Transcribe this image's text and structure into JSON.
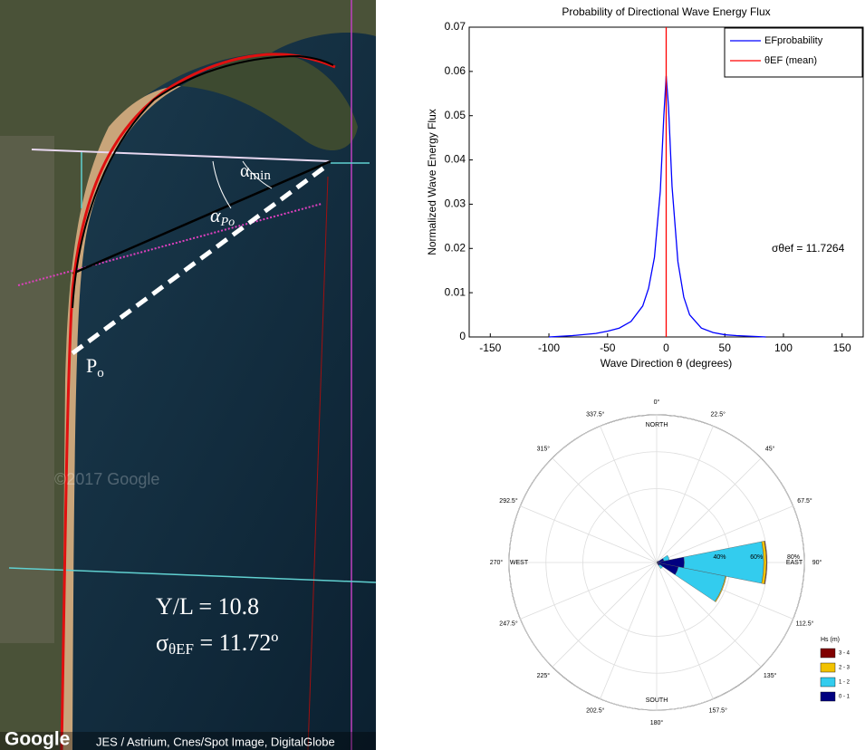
{
  "image": {
    "alpha_min": {
      "symbol": "α",
      "subscript": "min"
    },
    "alpha_po": {
      "symbol": "α",
      "subscript": "Po"
    },
    "point": {
      "symbol": "P",
      "subscript": "o"
    },
    "ratio": "Y/L = 10.8",
    "sigma": {
      "symbol": "σ",
      "subscript": "θEF",
      "text": " = 11.72º"
    },
    "watermark": "Google",
    "faint_watermark": "©2017 Google",
    "credits": "JES / Astrium, Cnes/Spot Image, DigitalGlobe"
  },
  "chart_data": [
    {
      "type": "line",
      "title": "Probability of Directional Wave Energy Flux",
      "x_label": "Wave Direction θ (degrees)",
      "y_label": "Normalized Wave Energy Flux",
      "xlim": [
        -168,
        168
      ],
      "ylim": [
        0,
        0.07
      ],
      "xticks": [
        -150,
        -100,
        -50,
        0,
        50,
        100,
        150
      ],
      "yticks": [
        0,
        0.01,
        0.02,
        0.03,
        0.04,
        0.05,
        0.06,
        0.07
      ],
      "legend": "top-right",
      "annotation": "σθef =  11.7264",
      "series": [
        {
          "name": "EFprobability",
          "color": "#0000ff",
          "x": [
            -100,
            -80,
            -60,
            -50,
            -40,
            -30,
            -20,
            -15,
            -10,
            -5,
            -2,
            0,
            2,
            5,
            10,
            15,
            20,
            30,
            40,
            50,
            60,
            85
          ],
          "values": [
            0,
            0.0003,
            0.0008,
            0.0013,
            0.002,
            0.0035,
            0.007,
            0.011,
            0.018,
            0.033,
            0.05,
            0.059,
            0.052,
            0.034,
            0.017,
            0.009,
            0.005,
            0.002,
            0.001,
            0.0005,
            0.0003,
            0
          ]
        },
        {
          "name": "θEF (mean)",
          "color": "#ff0000",
          "x": [
            0,
            0
          ],
          "values": [
            0,
            0.07
          ]
        }
      ]
    },
    {
      "type": "rose",
      "legend_title": "Hs (m)",
      "directions": [
        {
          "value": 0,
          "label": "0°"
        },
        {
          "value": 22.5,
          "label": "22.5°"
        },
        {
          "value": 45,
          "label": "45°"
        },
        {
          "value": 67.5,
          "label": "67.5°"
        },
        {
          "value": 90,
          "label": "90°"
        },
        {
          "value": 112.5,
          "label": "112.5°"
        },
        {
          "value": 135,
          "label": "135°"
        },
        {
          "value": 157.5,
          "label": "157.5°"
        },
        {
          "value": 180,
          "label": "180°"
        },
        {
          "value": 202.5,
          "label": "202.5°"
        },
        {
          "value": 225,
          "label": "225°"
        },
        {
          "value": 247.5,
          "label": "247.5°"
        },
        {
          "value": 270,
          "label": "270°"
        },
        {
          "value": 292.5,
          "label": "292.5°"
        },
        {
          "value": 315,
          "label": "315°"
        },
        {
          "value": 337.5,
          "label": "337.5°"
        }
      ],
      "compass": [
        "NORTH",
        "EAST",
        "SOUTH",
        "WEST"
      ],
      "rlim": [
        0,
        80
      ],
      "rticks": [
        {
          "value": 40,
          "label": "40%"
        },
        {
          "value": 60,
          "label": "60%"
        },
        {
          "value": 80,
          "label": "80%"
        }
      ],
      "series": [
        {
          "name": "0 - 1",
          "color": "#000080",
          "values": [
            0,
            0,
            1,
            4,
            15,
            12,
            2,
            0,
            0,
            0,
            0,
            0,
            0,
            0,
            0,
            0
          ]
        },
        {
          "name": "1 - 2",
          "color": "#33ccee",
          "values": [
            0,
            0,
            0,
            3,
            43,
            26,
            2,
            0,
            0,
            0,
            0,
            0,
            0,
            0,
            0,
            0
          ]
        },
        {
          "name": "2 - 3",
          "color": "#f2c200",
          "values": [
            0,
            0,
            0,
            0,
            1.5,
            0.5,
            0,
            0,
            0,
            0,
            0,
            0,
            0,
            0,
            0,
            0
          ]
        },
        {
          "name": "3 - 4",
          "color": "#800000",
          "values": [
            0,
            0,
            0,
            0,
            0.3,
            0,
            0,
            0,
            0,
            0,
            0,
            0,
            0,
            0,
            0,
            0
          ]
        }
      ]
    }
  ]
}
